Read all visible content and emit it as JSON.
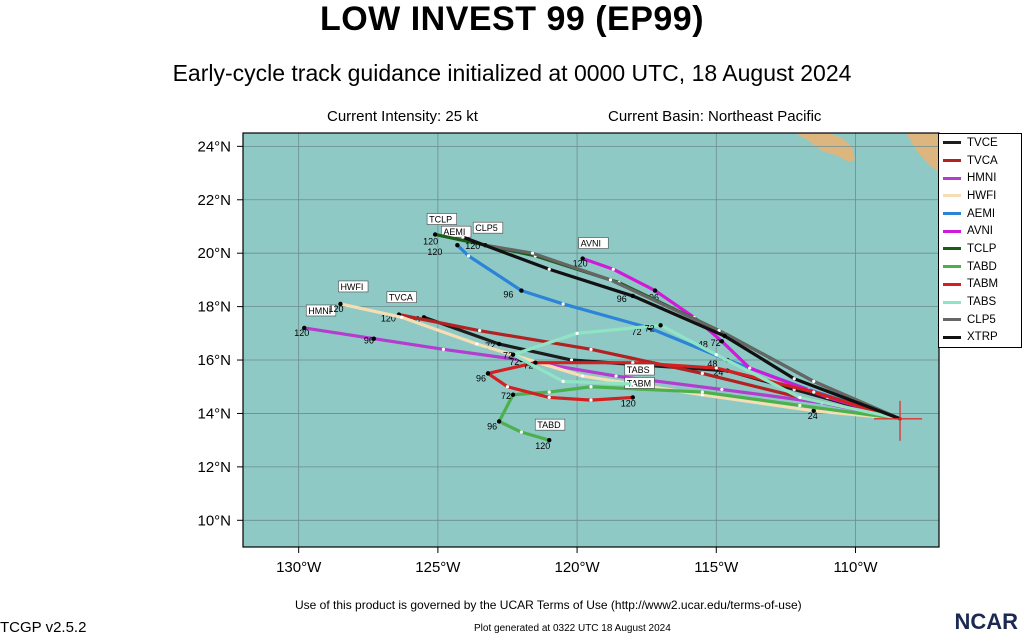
{
  "header": {
    "title": "LOW INVEST 99 (EP99)",
    "subtitle": "Early-cycle track guidance initialized at 0000 UTC, 18 August 2024",
    "intensity": "Current Intensity: 25 kt",
    "basin": "Current Basin: Northeast Pacific"
  },
  "footer": {
    "terms": "Use of this product is governed by the UCAR Terms of Use (http://www2.ucar.edu/terms-of-use)",
    "generated": "Plot generated at 0322 UTC   18 August 2024",
    "version": "TCGP v2.5.2",
    "brand": "NCAR"
  },
  "chart_data": {
    "type": "line",
    "xlim": [
      -132,
      -107
    ],
    "ylim": [
      9,
      24.5
    ],
    "xticks": [
      -130,
      -125,
      -120,
      -115,
      -110
    ],
    "xtick_labels": [
      "130°W",
      "125°W",
      "120°W",
      "115°W",
      "110°W"
    ],
    "yticks": [
      10,
      12,
      14,
      16,
      18,
      20,
      22,
      24
    ],
    "ytick_labels": [
      "10°N",
      "12°N",
      "14°N",
      "16°N",
      "18°N",
      "20°N",
      "22°N",
      "24°N"
    ],
    "colors": {
      "ocean": "#8fc9c6",
      "land": "#ddb57e"
    },
    "legend": "right",
    "initial_position": [
      -108.4,
      13.8
    ],
    "series": [
      {
        "name": "TVCE",
        "color": "#1c1c1c",
        "points": [
          [
            -108.4,
            13.8
          ],
          [
            -112.2,
            14.9
          ],
          [
            -114.6,
            15.6
          ],
          [
            -117.5,
            15.8
          ],
          [
            -120.2,
            16.0
          ],
          [
            -122.8,
            16.6
          ],
          [
            -125.5,
            17.6
          ]
        ],
        "labels": [
          {
            "text": "24",
            "at": 2
          },
          {
            "text": "72",
            "at": 5
          },
          {
            "text": "96",
            "at": 6
          }
        ]
      },
      {
        "name": "TVCA",
        "color": "#b22222",
        "points": [
          [
            -108.4,
            13.8
          ],
          [
            -112.0,
            14.6
          ],
          [
            -115.5,
            15.5
          ],
          [
            -119.5,
            16.4
          ],
          [
            -123.5,
            17.1
          ],
          [
            -126.4,
            17.7
          ]
        ],
        "labels": [
          {
            "text": "120",
            "at": 5,
            "dx": -18,
            "dy": 7
          }
        ],
        "tag": {
          "text": "TVCA",
          "at": 5,
          "dx": -10,
          "dy": -14
        }
      },
      {
        "name": "HMNI",
        "color": "#b43ccf",
        "points": [
          [
            -108.4,
            13.8
          ],
          [
            -111.2,
            14.4
          ],
          [
            -114.8,
            14.9
          ],
          [
            -118.6,
            15.4
          ],
          [
            -122.0,
            16.0
          ],
          [
            -124.8,
            16.4
          ],
          [
            -127.3,
            16.8
          ],
          [
            -129.8,
            17.2
          ]
        ],
        "labels": [
          {
            "text": "72",
            "at": 4,
            "dx": -12,
            "dy": 5
          },
          {
            "text": "96",
            "at": 6,
            "dx": -10,
            "dy": 5
          },
          {
            "text": "120",
            "at": 7,
            "dx": -10,
            "dy": 8
          }
        ],
        "tag": {
          "text": "HMNI",
          "at": 7,
          "dx": 4,
          "dy": -14
        }
      },
      {
        "name": "HWFI",
        "color": "#f5deb3",
        "points": [
          [
            -108.4,
            13.8
          ],
          [
            -111.5,
            14.1
          ],
          [
            -115.5,
            14.7
          ],
          [
            -119.8,
            15.4
          ],
          [
            -123.6,
            16.6
          ],
          [
            -126.3,
            17.6
          ],
          [
            -128.5,
            18.1
          ]
        ],
        "labels": [
          {
            "text": "24",
            "at": 1,
            "dx": -6,
            "dy": 8
          },
          {
            "text": "120",
            "at": 6,
            "dx": -12,
            "dy": 8
          }
        ],
        "tag": {
          "text": "HWFI",
          "at": 6,
          "dx": 0,
          "dy": -14
        }
      },
      {
        "name": "AEMI",
        "color": "#2b84d8",
        "points": [
          [
            -108.4,
            13.8
          ],
          [
            -111.7,
            14.9
          ],
          [
            -114.6,
            16.0
          ],
          [
            -117.4,
            17.2
          ],
          [
            -120.5,
            18.1
          ],
          [
            -122.0,
            18.6
          ],
          [
            -123.9,
            19.9
          ],
          [
            -124.3,
            20.3
          ]
        ],
        "labels": [
          {
            "text": "48",
            "at": 2,
            "dx": -20,
            "dy": 7
          },
          {
            "text": "72",
            "at": 3,
            "dx": -18,
            "dy": 7
          },
          {
            "text": "96",
            "at": 5,
            "dx": -18,
            "dy": 7
          },
          {
            "text": "120",
            "at": 7,
            "dx": -30,
            "dy": 10
          }
        ],
        "tag": {
          "text": "AEMI",
          "at": 7,
          "dx": -14,
          "dy": -10
        }
      },
      {
        "name": "AVNI",
        "color": "#d11ad9",
        "points": [
          [
            -108.4,
            13.8
          ],
          [
            -111.0,
            14.6
          ],
          [
            -113.8,
            15.7
          ],
          [
            -114.8,
            16.7
          ],
          [
            -115.8,
            17.6
          ],
          [
            -117.2,
            18.6
          ],
          [
            -118.7,
            19.4
          ],
          [
            -119.8,
            19.8
          ]
        ],
        "labels": [
          {
            "text": "48",
            "at": 3,
            "dx": -24,
            "dy": 6
          },
          {
            "text": "96",
            "at": 5,
            "dx": -6,
            "dy": 10
          },
          {
            "text": "120",
            "at": 7,
            "dx": -10,
            "dy": 8
          }
        ],
        "tag": {
          "text": "AVNI",
          "at": 7,
          "dx": -2,
          "dy": -12
        }
      },
      {
        "name": "TCLP",
        "color": "#1a5c1a",
        "points": [
          [
            -108.4,
            13.8
          ],
          [
            -111.5,
            15.2
          ],
          [
            -114.7,
            17.0
          ],
          [
            -118.5,
            18.9
          ],
          [
            -121.5,
            19.9
          ],
          [
            -125.1,
            20.7
          ]
        ],
        "labels": [
          {
            "text": "120",
            "at": 5,
            "dx": -12,
            "dy": 10
          }
        ],
        "tag": {
          "text": "TCLP",
          "at": 5,
          "dx": -6,
          "dy": -12
        }
      },
      {
        "name": "TABD",
        "color": "#4cb04c",
        "points": [
          [
            -108.4,
            13.8
          ],
          [
            -112.0,
            14.3
          ],
          [
            -115.5,
            14.8
          ],
          [
            -119.5,
            15.0
          ],
          [
            -121.0,
            14.8
          ],
          [
            -122.3,
            14.7
          ],
          [
            -122.8,
            13.7
          ],
          [
            -122.0,
            13.3
          ],
          [
            -121.0,
            13.0
          ]
        ],
        "labels": [
          {
            "text": "72",
            "at": 5,
            "dx": -12,
            "dy": 4
          },
          {
            "text": "96",
            "at": 6,
            "dx": -12,
            "dy": 8
          },
          {
            "text": "120",
            "at": 8,
            "dx": -14,
            "dy": 9
          }
        ],
        "tag": {
          "text": "TABD",
          "at": 8,
          "dx": -12,
          "dy": -12
        }
      },
      {
        "name": "TABM",
        "color": "#d42020",
        "points": [
          [
            -108.4,
            13.8
          ],
          [
            -111.5,
            14.8
          ],
          [
            -115.0,
            15.7
          ],
          [
            -118.0,
            15.9
          ],
          [
            -121.5,
            15.9
          ],
          [
            -123.2,
            15.5
          ],
          [
            -122.5,
            15.0
          ],
          [
            -121.0,
            14.6
          ],
          [
            -119.5,
            14.5
          ],
          [
            -118.0,
            14.6
          ]
        ],
        "labels": [
          {
            "text": "72",
            "at": 4,
            "dx": -12,
            "dy": 6
          },
          {
            "text": "96",
            "at": 5,
            "dx": -12,
            "dy": 8
          },
          {
            "text": "120",
            "at": 9,
            "dx": -12,
            "dy": 9
          }
        ],
        "tag": {
          "text": "TABM",
          "at": 9,
          "dx": -6,
          "dy": -11
        }
      },
      {
        "name": "TABS",
        "color": "#8fe5c3",
        "points": [
          [
            -108.4,
            13.8
          ],
          [
            -112.0,
            14.6
          ],
          [
            -115.0,
            16.2
          ],
          [
            -117.0,
            17.3
          ],
          [
            -120.0,
            17.0
          ],
          [
            -122.3,
            16.2
          ],
          [
            -120.5,
            15.2
          ],
          [
            -118.0,
            15.1
          ]
        ],
        "labels": [
          {
            "text": "72",
            "at": 3,
            "dx": -16,
            "dy": 6
          },
          {
            "text": "72",
            "at": 5,
            "dx": -10,
            "dy": 4
          }
        ],
        "tag": {
          "text": "TABS",
          "at": 7,
          "dx": -6,
          "dy": -11
        }
      },
      {
        "name": "CLP5",
        "color": "#666666",
        "points": [
          [
            -108.4,
            13.8
          ],
          [
            -111.5,
            15.2
          ],
          [
            -114.9,
            17.1
          ],
          [
            -118.8,
            19.0
          ],
          [
            -121.6,
            20.0
          ],
          [
            -123.3,
            20.3
          ]
        ],
        "labels": [
          {
            "text": "120",
            "at": 5,
            "dx": -20,
            "dy": 4
          }
        ],
        "tag": {
          "text": "CLP5",
          "at": 5,
          "dx": -10,
          "dy": -14
        }
      },
      {
        "name": "XTRP",
        "color": "#111111",
        "points": [
          [
            -108.4,
            13.8
          ],
          [
            -112.2,
            15.3
          ],
          [
            -114.7,
            16.9
          ],
          [
            -118.0,
            18.4
          ],
          [
            -121.0,
            19.4
          ],
          [
            -124.1,
            20.6
          ]
        ],
        "labels": [
          {
            "text": "96",
            "at": 3,
            "dx": -16,
            "dy": 6
          },
          {
            "text": "72",
            "at": 2,
            "dx": -14,
            "dy": 10
          }
        ]
      }
    ]
  }
}
